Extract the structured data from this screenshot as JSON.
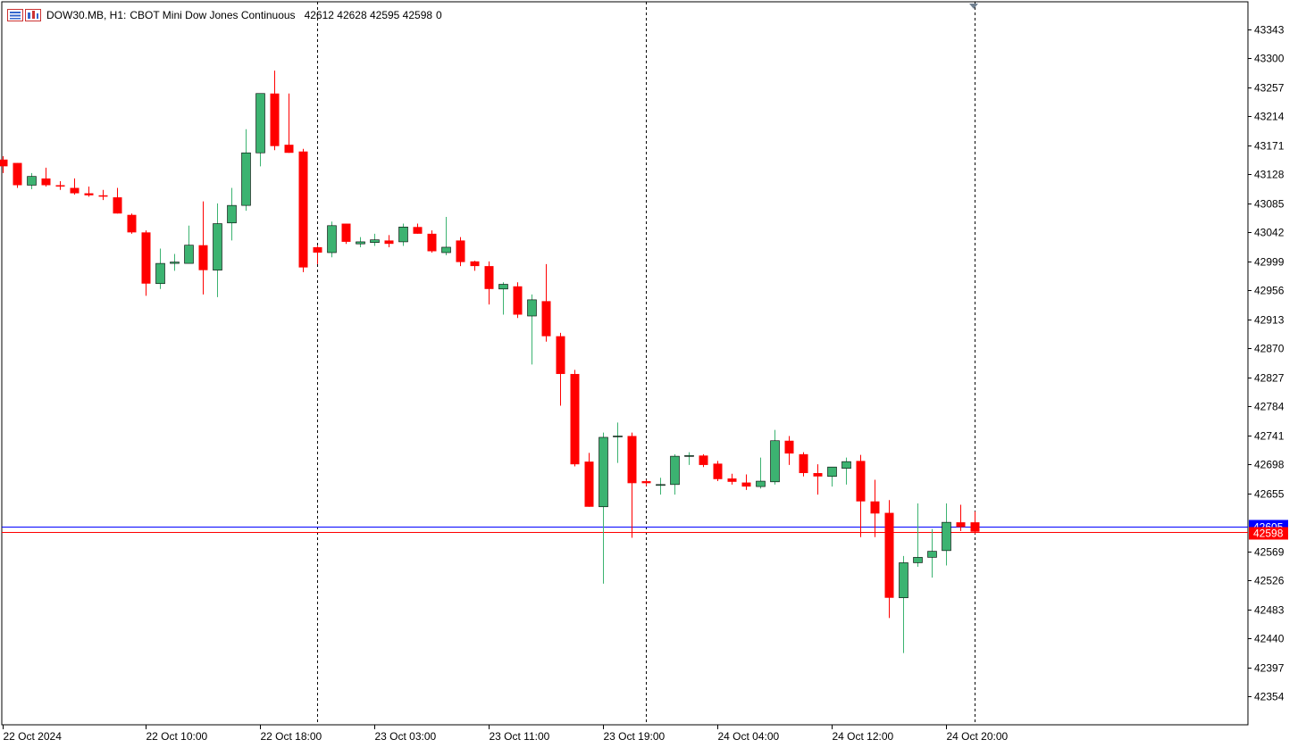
{
  "header": {
    "symbol": "DOW30.MB, H1:",
    "description": "CBOT Mini Dow Jones Continuous",
    "ohlc": "42612 42628 42595 42598",
    "zero": "0"
  },
  "colors": {
    "bull": "#3cb371",
    "bear": "#ff0000",
    "outline": "#000000",
    "bid_line": "#ff0000",
    "ask_line": "#0000ff",
    "price_tag": "#ff0000",
    "ask_tag": "#0000ff"
  },
  "chart_data": {
    "type": "candlestick",
    "timeframe": "H1",
    "y_axis_ticks": [
      43343,
      43300,
      43257,
      43214,
      43171,
      43128,
      43085,
      43042,
      42999,
      42956,
      42913,
      42870,
      42827,
      42784,
      42741,
      42698,
      42655,
      42569,
      42526,
      42483,
      42440,
      42397,
      42354
    ],
    "ylim": [
      42330,
      43370
    ],
    "x_axis_labels": [
      {
        "label": "22 Oct 2024",
        "bar": 0
      },
      {
        "label": "22 Oct 10:00",
        "bar": 10
      },
      {
        "label": "22 Oct 18:00",
        "bar": 18
      },
      {
        "label": "23 Oct 03:00",
        "bar": 26
      },
      {
        "label": "23 Oct 11:00",
        "bar": 34
      },
      {
        "label": "23 Oct 19:00",
        "bar": 42
      },
      {
        "label": "24 Oct 04:00",
        "bar": 50
      },
      {
        "label": "24 Oct 12:00",
        "bar": 58
      },
      {
        "label": "24 Oct 20:00",
        "bar": 66
      }
    ],
    "day_separators_bar": [
      22,
      45,
      68
    ],
    "current_bid": 42598,
    "current_bid_label": "42598",
    "current_ask": 42605,
    "current_ask_label": "42605",
    "candles": [
      [
        43150,
        43155,
        43130,
        43140
      ],
      [
        43145,
        43145,
        43108,
        43112
      ],
      [
        43112,
        43130,
        43106,
        43125
      ],
      [
        43122,
        43138,
        43110,
        43112
      ],
      [
        43112,
        43118,
        43105,
        43110
      ],
      [
        43108,
        43122,
        43098,
        43100
      ],
      [
        43100,
        43110,
        43095,
        43097
      ],
      [
        43097,
        43105,
        43090,
        43095
      ],
      [
        43094,
        43108,
        43070,
        43070
      ],
      [
        43068,
        43070,
        43040,
        43042
      ],
      [
        43042,
        43045,
        42948,
        42966
      ],
      [
        42966,
        43018,
        42958,
        42996
      ],
      [
        42996,
        43010,
        42985,
        42998
      ],
      [
        42996,
        43052,
        42996,
        43023
      ],
      [
        43023,
        43088,
        42950,
        42986
      ],
      [
        42986,
        43085,
        42946,
        43055
      ],
      [
        43056,
        43108,
        43030,
        43082
      ],
      [
        43082,
        43195,
        43074,
        43160
      ],
      [
        43160,
        43248,
        43140,
        43248
      ],
      [
        43248,
        43282,
        43164,
        43170
      ],
      [
        43172,
        43248,
        43160,
        43160
      ],
      [
        43162,
        43166,
        42983,
        42990
      ],
      [
        43020,
        43022,
        42995,
        43012
      ],
      [
        43012,
        43058,
        43005,
        43052
      ],
      [
        43055,
        43055,
        43025,
        43028
      ],
      [
        43025,
        43035,
        43020,
        43028
      ],
      [
        43027,
        43040,
        43022,
        43031
      ],
      [
        43030,
        43038,
        43020,
        43025
      ],
      [
        43028,
        43055,
        43022,
        43050
      ],
      [
        43050,
        43055,
        43040,
        43040
      ],
      [
        43040,
        43045,
        43012,
        43014
      ],
      [
        43012,
        43065,
        43008,
        43020
      ],
      [
        43030,
        43035,
        42992,
        42998
      ],
      [
        42999,
        43000,
        42985,
        42992
      ],
      [
        42992,
        42999,
        42935,
        42958
      ],
      [
        42958,
        42968,
        42920,
        42965
      ],
      [
        42962,
        42968,
        42915,
        42920
      ],
      [
        42918,
        42950,
        42846,
        42942
      ],
      [
        42940,
        42995,
        42880,
        42888
      ],
      [
        42888,
        42893,
        42785,
        42832
      ],
      [
        42832,
        42838,
        42695,
        42698
      ],
      [
        42702,
        42715,
        42635,
        42635
      ],
      [
        42635,
        42745,
        42521,
        42738
      ],
      [
        42740,
        42760,
        42700,
        42740
      ],
      [
        42740,
        42745,
        42589,
        42670
      ],
      [
        42673,
        42675,
        42666,
        42670
      ],
      [
        42668,
        42678,
        42653,
        42668
      ],
      [
        42668,
        42713,
        42653,
        42710
      ],
      [
        42710,
        42716,
        42697,
        42711
      ],
      [
        42711,
        42713,
        42694,
        42697
      ],
      [
        42699,
        42703,
        42673,
        42676
      ],
      [
        42677,
        42684,
        42668,
        42672
      ],
      [
        42671,
        42683,
        42660,
        42665
      ],
      [
        42665,
        42708,
        42662,
        42673
      ],
      [
        42672,
        42749,
        42668,
        42733
      ],
      [
        42733,
        42740,
        42697,
        42714
      ],
      [
        42713,
        42716,
        42680,
        42685
      ],
      [
        42685,
        42698,
        42653,
        42680
      ],
      [
        42680,
        42694,
        42665,
        42694
      ],
      [
        42692,
        42708,
        42668,
        42702
      ],
      [
        42703,
        42712,
        42590,
        42643
      ],
      [
        42643,
        42675,
        42590,
        42625
      ],
      [
        42626,
        42645,
        42470,
        42500
      ],
      [
        42500,
        42562,
        42418,
        42552
      ],
      [
        42552,
        42640,
        42546,
        42560
      ],
      [
        42560,
        42602,
        42530,
        42569
      ],
      [
        42570,
        42640,
        42548,
        42612
      ],
      [
        42612,
        42638,
        42599,
        42605
      ],
      [
        42612,
        42628,
        42595,
        42598
      ]
    ]
  }
}
